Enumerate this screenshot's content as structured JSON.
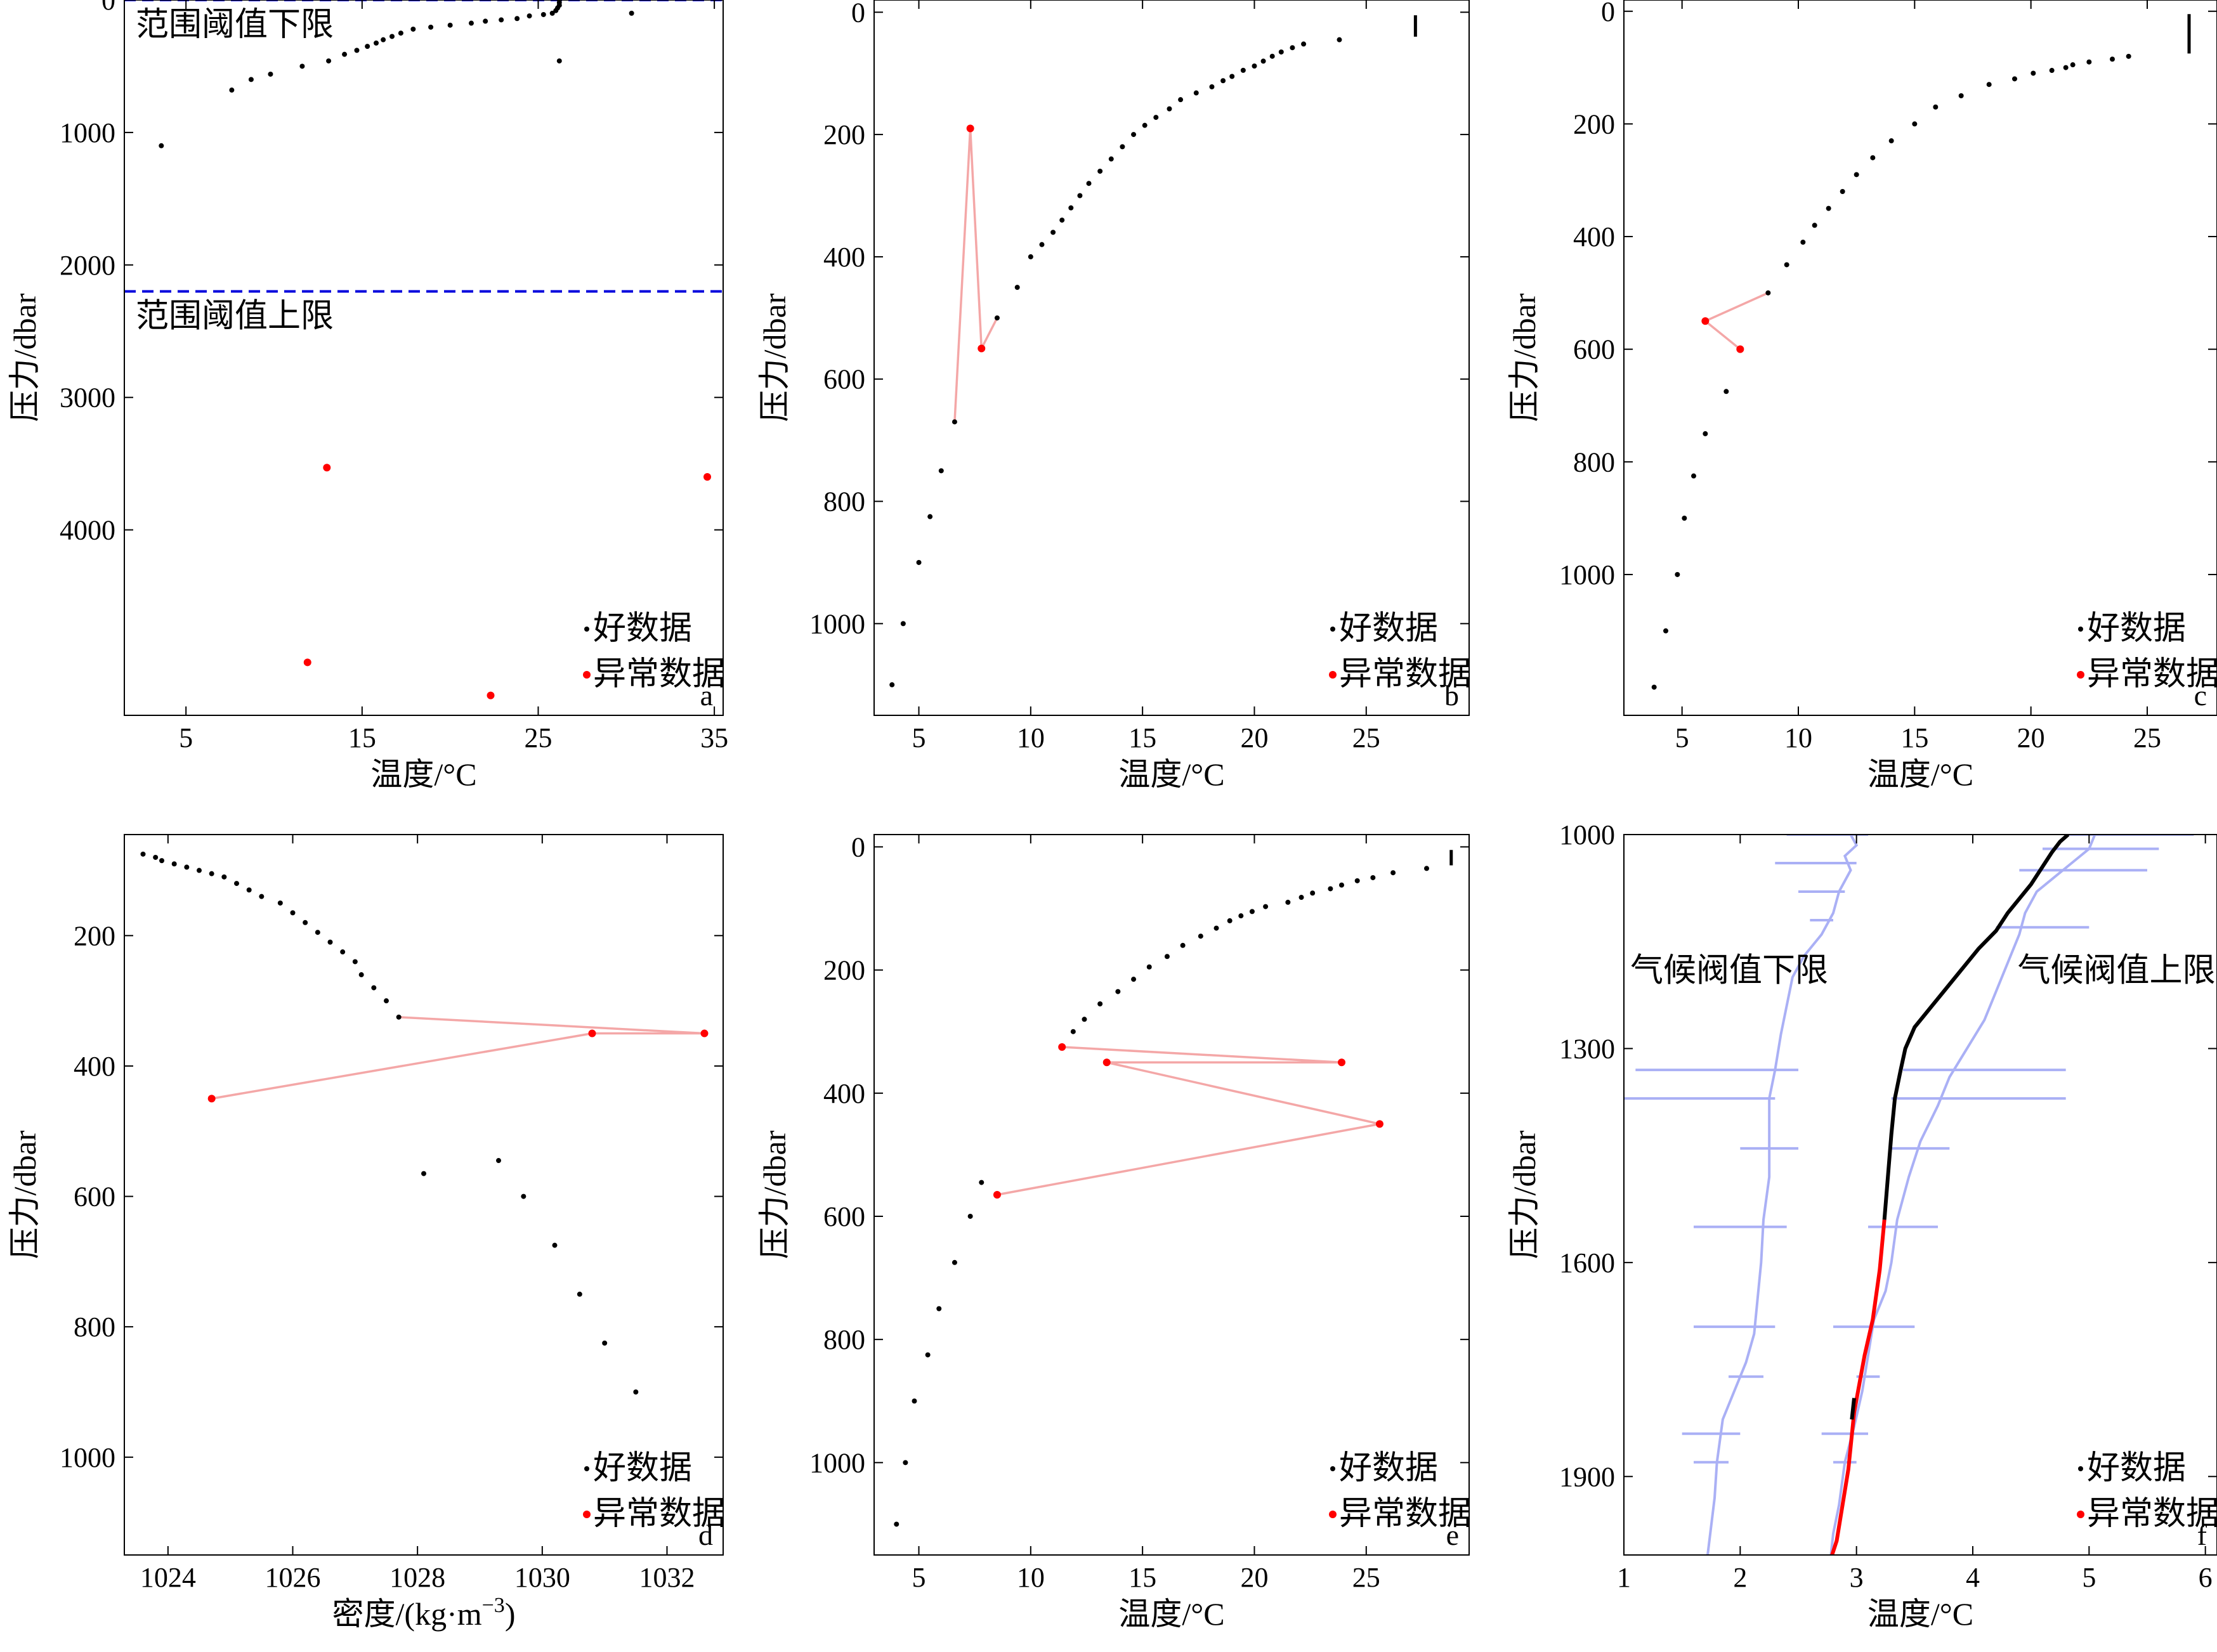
{
  "legend": {
    "good": "好数据",
    "bad": "异常数据"
  },
  "colors": {
    "good": "#000000",
    "bad": "#ff0000",
    "bad_line": "#f4a7a7",
    "threshold": "#0000dd",
    "climate": "#aab0f5"
  },
  "chart_data": [
    {
      "id": "a",
      "type": "scatter",
      "panel_label": "a",
      "xlabel": "温度/°C",
      "ylabel": "压力/dbar",
      "xlim": [
        1.5,
        35.5
      ],
      "ylim": [
        0,
        5400
      ],
      "y_inverted": true,
      "x_ticks": [
        5,
        15,
        25,
        35
      ],
      "y_ticks": [
        0,
        1000,
        2000,
        3000,
        4000
      ],
      "thresholds": [
        {
          "y": 0,
          "label": "范围阈值下限"
        },
        {
          "y": 2200,
          "label": "范围阈值上限"
        }
      ],
      "good": [
        [
          26.2,
          0
        ],
        [
          26.2,
          20
        ],
        [
          26.2,
          40
        ],
        [
          26.1,
          60
        ],
        [
          26.0,
          80
        ],
        [
          25.8,
          100
        ],
        [
          25.3,
          110
        ],
        [
          24.5,
          120
        ],
        [
          23.8,
          140
        ],
        [
          22.9,
          150
        ],
        [
          22.0,
          160
        ],
        [
          21.2,
          175
        ],
        [
          20.0,
          190
        ],
        [
          18.9,
          205
        ],
        [
          17.9,
          220
        ],
        [
          17.2,
          250
        ],
        [
          16.7,
          275
        ],
        [
          16.2,
          300
        ],
        [
          15.8,
          325
        ],
        [
          15.3,
          350
        ],
        [
          14.7,
          380
        ],
        [
          14.0,
          410
        ],
        [
          13.1,
          460
        ],
        [
          11.6,
          500
        ],
        [
          9.8,
          560
        ],
        [
          8.7,
          600
        ],
        [
          7.6,
          680
        ],
        [
          3.6,
          1100
        ],
        [
          26.2,
          460
        ],
        [
          30.3,
          100
        ]
      ],
      "bad": [
        [
          13.0,
          3530
        ],
        [
          34.6,
          3600
        ],
        [
          11.9,
          5000
        ],
        [
          22.3,
          5250
        ]
      ],
      "legend_pos": "bottom-right"
    },
    {
      "id": "b",
      "type": "scatter",
      "panel_label": "b",
      "xlabel": "温度/°C",
      "ylabel": "压力/dbar",
      "xlim": [
        3,
        29.6
      ],
      "ylim": [
        -20,
        1150
      ],
      "y_inverted": true,
      "x_ticks": [
        5,
        10,
        15,
        20,
        25
      ],
      "y_ticks": [
        0,
        200,
        400,
        600,
        800,
        1000
      ],
      "good_cluster": {
        "x": 27.2,
        "y_from": 5,
        "y_to": 40
      },
      "good": [
        [
          23.8,
          45
        ],
        [
          22.2,
          52
        ],
        [
          21.7,
          58
        ],
        [
          21.2,
          65
        ],
        [
          20.8,
          72
        ],
        [
          20.4,
          80
        ],
        [
          20.0,
          88
        ],
        [
          19.5,
          95
        ],
        [
          19.0,
          105
        ],
        [
          18.6,
          112
        ],
        [
          18.1,
          122
        ],
        [
          17.4,
          132
        ],
        [
          16.7,
          143
        ],
        [
          16.2,
          158
        ],
        [
          15.6,
          172
        ],
        [
          15.1,
          185
        ],
        [
          14.6,
          200
        ],
        [
          14.1,
          220
        ],
        [
          13.6,
          240
        ],
        [
          13.1,
          260
        ],
        [
          12.6,
          280
        ],
        [
          12.2,
          300
        ],
        [
          11.8,
          320
        ],
        [
          11.4,
          340
        ],
        [
          11.0,
          360
        ],
        [
          10.5,
          380
        ],
        [
          10.0,
          400
        ],
        [
          9.4,
          450
        ],
        [
          8.5,
          500
        ],
        [
          6.6,
          670
        ],
        [
          6.0,
          750
        ],
        [
          5.5,
          825
        ],
        [
          5.0,
          900
        ],
        [
          4.3,
          1000
        ],
        [
          3.8,
          1100
        ]
      ],
      "bad": [
        [
          7.3,
          190
        ],
        [
          7.8,
          550
        ]
      ],
      "bad_path": [
        [
          8.5,
          500
        ],
        [
          7.8,
          550
        ],
        [
          7.3,
          190
        ],
        [
          6.6,
          670
        ]
      ],
      "legend_pos": "bottom-right"
    },
    {
      "id": "c",
      "type": "scatter",
      "panel_label": "c",
      "xlabel": "温度/°C",
      "ylabel": "压力/dbar",
      "xlim": [
        2.5,
        28.0
      ],
      "ylim": [
        -20,
        1250
      ],
      "y_inverted": true,
      "x_ticks": [
        5,
        10,
        15,
        20,
        25
      ],
      "y_ticks": [
        0,
        200,
        400,
        600,
        800,
        1000
      ],
      "good_cluster": {
        "x": 26.8,
        "y_from": 5,
        "y_to": 75
      },
      "good": [
        [
          24.2,
          80
        ],
        [
          23.5,
          85
        ],
        [
          22.5,
          90
        ],
        [
          21.8,
          95
        ],
        [
          21.5,
          100
        ],
        [
          20.9,
          105
        ],
        [
          20.1,
          110
        ],
        [
          19.3,
          120
        ],
        [
          18.2,
          130
        ],
        [
          17.0,
          150
        ],
        [
          15.9,
          170
        ],
        [
          15.0,
          200
        ],
        [
          14.0,
          230
        ],
        [
          13.2,
          260
        ],
        [
          12.5,
          290
        ],
        [
          11.9,
          320
        ],
        [
          11.3,
          350
        ],
        [
          10.7,
          380
        ],
        [
          10.2,
          410
        ],
        [
          9.5,
          450
        ],
        [
          8.7,
          500
        ],
        [
          6.9,
          675
        ],
        [
          6.0,
          750
        ],
        [
          5.5,
          825
        ],
        [
          5.1,
          900
        ],
        [
          4.8,
          1000
        ],
        [
          4.3,
          1100
        ],
        [
          3.8,
          1200
        ]
      ],
      "bad": [
        [
          6.0,
          550
        ],
        [
          7.5,
          600
        ]
      ],
      "bad_path": [
        [
          8.7,
          500
        ],
        [
          6.0,
          550
        ],
        [
          7.5,
          600
        ]
      ],
      "legend_pos": "bottom-right"
    },
    {
      "id": "d",
      "type": "scatter",
      "panel_label": "d",
      "xlabel": "密度/(kg·m",
      "xlabel_sup": "−3",
      "xlabel_end": ")",
      "ylabel": "压力/dbar",
      "xlim": [
        1023.3,
        1032.9
      ],
      "ylim": [
        45,
        1150
      ],
      "y_inverted": true,
      "x_ticks": [
        1024,
        1026,
        1028,
        1030,
        1032
      ],
      "y_ticks": [
        200,
        400,
        600,
        800,
        1000
      ],
      "good": [
        [
          1023.6,
          75
        ],
        [
          1023.8,
          80
        ],
        [
          1023.9,
          85
        ],
        [
          1024.1,
          90
        ],
        [
          1024.3,
          95
        ],
        [
          1024.5,
          100
        ],
        [
          1024.7,
          105
        ],
        [
          1024.9,
          110
        ],
        [
          1025.1,
          120
        ],
        [
          1025.3,
          130
        ],
        [
          1025.5,
          140
        ],
        [
          1025.8,
          150
        ],
        [
          1026.0,
          165
        ],
        [
          1026.2,
          180
        ],
        [
          1026.4,
          195
        ],
        [
          1026.6,
          210
        ],
        [
          1026.8,
          225
        ],
        [
          1027.0,
          240
        ],
        [
          1027.1,
          260
        ],
        [
          1027.3,
          280
        ],
        [
          1027.5,
          300
        ],
        [
          1027.7,
          325
        ],
        [
          1028.1,
          565
        ],
        [
          1029.3,
          545
        ],
        [
          1029.7,
          600
        ],
        [
          1030.2,
          675
        ],
        [
          1030.6,
          750
        ],
        [
          1031.0,
          825
        ],
        [
          1031.5,
          900
        ]
      ],
      "bad": [
        [
          1030.8,
          350
        ],
        [
          1032.6,
          350
        ],
        [
          1024.7,
          450
        ]
      ],
      "bad_path": [
        [
          1027.7,
          325
        ],
        [
          1032.6,
          350
        ],
        [
          1030.8,
          350
        ],
        [
          1024.7,
          450
        ]
      ],
      "legend_pos": "bottom-right"
    },
    {
      "id": "e",
      "type": "scatter",
      "panel_label": "e",
      "xlabel": "温度/°C",
      "ylabel": "压力/dbar",
      "xlim": [
        3,
        29.6
      ],
      "ylim": [
        -20,
        1150
      ],
      "y_inverted": true,
      "x_ticks": [
        5,
        10,
        15,
        20,
        25
      ],
      "y_ticks": [
        0,
        200,
        400,
        600,
        800,
        1000
      ],
      "good_cluster": {
        "x": 28.8,
        "y_from": 5,
        "y_to": 30
      },
      "good": [
        [
          27.7,
          35
        ],
        [
          26.2,
          42
        ],
        [
          25.3,
          50
        ],
        [
          24.6,
          55
        ],
        [
          23.9,
          62
        ],
        [
          23.4,
          68
        ],
        [
          22.6,
          75
        ],
        [
          22.1,
          82
        ],
        [
          21.5,
          90
        ],
        [
          20.5,
          97
        ],
        [
          19.9,
          105
        ],
        [
          19.4,
          112
        ],
        [
          18.9,
          120
        ],
        [
          18.3,
          132
        ],
        [
          17.6,
          145
        ],
        [
          16.8,
          160
        ],
        [
          16.1,
          178
        ],
        [
          15.3,
          195
        ],
        [
          14.6,
          215
        ],
        [
          13.9,
          235
        ],
        [
          13.1,
          255
        ],
        [
          12.4,
          280
        ],
        [
          11.9,
          300
        ],
        [
          7.8,
          545
        ],
        [
          7.3,
          600
        ],
        [
          6.6,
          675
        ],
        [
          5.9,
          750
        ],
        [
          5.4,
          825
        ],
        [
          4.8,
          900
        ],
        [
          4.4,
          1000
        ],
        [
          4.0,
          1100
        ]
      ],
      "bad": [
        [
          11.4,
          325
        ],
        [
          13.4,
          350
        ],
        [
          23.9,
          350
        ],
        [
          25.6,
          450
        ],
        [
          8.5,
          565
        ]
      ],
      "bad_path": [
        [
          11.4,
          325
        ],
        [
          23.9,
          350
        ],
        [
          13.4,
          350
        ],
        [
          25.6,
          450
        ],
        [
          8.5,
          565
        ]
      ],
      "legend_pos": "bottom-right"
    },
    {
      "id": "f",
      "type": "line",
      "panel_label": "f",
      "xlabel": "温度/°C",
      "ylabel": "压力/dbar",
      "xlim": [
        1,
        6.1
      ],
      "ylim": [
        1000,
        2010
      ],
      "y_inverted": true,
      "x_ticks": [
        1,
        2,
        3,
        4,
        5,
        6
      ],
      "y_ticks": [
        1000,
        1300,
        1600,
        1900
      ],
      "annotations": [
        {
          "text": "气候阀值下限",
          "x": 1.0,
          "y": 1190
        },
        {
          "text": "气候阀值上限",
          "x": 4.33,
          "y": 1190
        }
      ],
      "profile_good": [
        [
          4.82,
          1000
        ],
        [
          4.75,
          1010
        ],
        [
          4.68,
          1025
        ],
        [
          4.6,
          1045
        ],
        [
          4.5,
          1070
        ],
        [
          4.4,
          1090
        ],
        [
          4.3,
          1110
        ],
        [
          4.2,
          1135
        ],
        [
          4.05,
          1160
        ],
        [
          3.9,
          1190
        ],
        [
          3.75,
          1220
        ],
        [
          3.6,
          1250
        ],
        [
          3.5,
          1270
        ],
        [
          3.42,
          1300
        ],
        [
          3.38,
          1330
        ],
        [
          3.33,
          1370
        ],
        [
          3.3,
          1420
        ],
        [
          3.27,
          1480
        ],
        [
          3.24,
          1540
        ]
      ],
      "profile_bad": [
        [
          3.24,
          1540
        ],
        [
          3.2,
          1610
        ],
        [
          3.14,
          1680
        ],
        [
          3.07,
          1730
        ],
        [
          2.98,
          1810
        ],
        [
          2.93,
          1890
        ],
        [
          2.87,
          1950
        ],
        [
          2.83,
          1990
        ],
        [
          2.79,
          2010
        ]
      ],
      "profile_good_mid": [
        [
          2.98,
          1790
        ],
        [
          2.96,
          1820
        ]
      ],
      "climate_lower": [
        [
          2.95,
          1000
        ],
        [
          3.0,
          1015
        ],
        [
          2.9,
          1030
        ],
        [
          2.95,
          1050
        ],
        [
          2.85,
          1080
        ],
        [
          2.8,
          1110
        ],
        [
          2.7,
          1140
        ],
        [
          2.55,
          1170
        ],
        [
          2.45,
          1200
        ],
        [
          2.4,
          1240
        ],
        [
          2.35,
          1280
        ],
        [
          2.3,
          1330
        ],
        [
          2.25,
          1370
        ],
        [
          2.25,
          1420
        ],
        [
          2.25,
          1480
        ],
        [
          2.2,
          1540
        ],
        [
          2.18,
          1600
        ],
        [
          2.15,
          1650
        ],
        [
          2.12,
          1700
        ],
        [
          2.05,
          1740
        ],
        [
          1.95,
          1780
        ],
        [
          1.85,
          1820
        ],
        [
          1.8,
          1880
        ],
        [
          1.78,
          1930
        ],
        [
          1.75,
          1970
        ],
        [
          1.72,
          2010
        ]
      ],
      "climate_upper": [
        [
          5.05,
          1000
        ],
        [
          5.0,
          1020
        ],
        [
          4.85,
          1040
        ],
        [
          4.7,
          1060
        ],
        [
          4.55,
          1080
        ],
        [
          4.45,
          1110
        ],
        [
          4.4,
          1140
        ],
        [
          4.3,
          1180
        ],
        [
          4.2,
          1220
        ],
        [
          4.1,
          1260
        ],
        [
          3.95,
          1300
        ],
        [
          3.8,
          1340
        ],
        [
          3.7,
          1380
        ],
        [
          3.55,
          1430
        ],
        [
          3.45,
          1480
        ],
        [
          3.35,
          1540
        ],
        [
          3.3,
          1600
        ],
        [
          3.25,
          1640
        ],
        [
          3.15,
          1680
        ],
        [
          3.1,
          1730
        ],
        [
          3.05,
          1780
        ],
        [
          2.98,
          1830
        ],
        [
          2.9,
          1880
        ],
        [
          2.85,
          1940
        ],
        [
          2.8,
          1980
        ],
        [
          2.78,
          2010
        ]
      ],
      "climate_spikes_lower": [
        [
          1000,
          2.4,
          3.1
        ],
        [
          1040,
          2.3,
          3.0
        ],
        [
          1080,
          2.5,
          2.9
        ],
        [
          1120,
          2.6,
          2.8
        ],
        [
          1330,
          1.1,
          2.5
        ],
        [
          1370,
          1.0,
          2.3
        ],
        [
          1440,
          2.0,
          2.5
        ],
        [
          1550,
          1.6,
          2.4
        ],
        [
          1690,
          1.6,
          2.3
        ],
        [
          1760,
          1.9,
          2.2
        ],
        [
          1840,
          1.5,
          2.0
        ],
        [
          1880,
          1.6,
          1.9
        ]
      ],
      "climate_spikes_upper": [
        [
          1000,
          4.8,
          5.9
        ],
        [
          1020,
          4.6,
          5.6
        ],
        [
          1050,
          4.4,
          5.5
        ],
        [
          1130,
          4.2,
          5.0
        ],
        [
          1330,
          3.4,
          4.8
        ],
        [
          1370,
          3.3,
          4.8
        ],
        [
          1440,
          3.3,
          3.8
        ],
        [
          1550,
          3.1,
          3.7
        ],
        [
          1690,
          2.8,
          3.5
        ],
        [
          1760,
          3.0,
          3.2
        ],
        [
          1840,
          2.7,
          3.1
        ],
        [
          1880,
          2.8,
          3.0
        ]
      ],
      "legend_pos": "bottom-right"
    }
  ]
}
